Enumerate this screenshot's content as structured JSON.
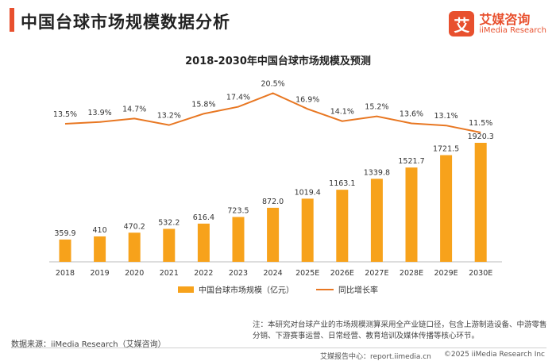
{
  "header": {
    "title": "中国台球市场规模数据分析"
  },
  "brand": {
    "mark": "艾",
    "name_cn": "艾媒咨询",
    "name_en": "iiMedia Research",
    "color": "#e8502e"
  },
  "chart_data": {
    "type": "bar",
    "title": "2018-2030年中国台球市场规模及预测",
    "categories": [
      "2018",
      "2019",
      "2020",
      "2021",
      "2022",
      "2023",
      "2024",
      "2025E",
      "2026E",
      "2027E",
      "2028E",
      "2029E",
      "2030E"
    ],
    "series": [
      {
        "name": "中国台球市场规模（亿元）",
        "type": "bar",
        "color": "#f7a21b",
        "values": [
          359.9,
          410,
          470.2,
          532.2,
          616.4,
          723.5,
          872.0,
          1019.4,
          1163.1,
          1339.8,
          1521.7,
          1721.5,
          1920.3
        ],
        "labels": [
          "359.9",
          "410",
          "470.2",
          "532.2",
          "616.4",
          "723.5",
          "872.0",
          "1019.4",
          "1163.1",
          "1339.8",
          "1521.7",
          "1721.5",
          "1920.3"
        ]
      },
      {
        "name": "同比增长率",
        "type": "line",
        "color": "#e87722",
        "values": [
          13.5,
          13.9,
          14.7,
          13.2,
          15.8,
          17.4,
          20.5,
          16.9,
          14.1,
          15.2,
          13.6,
          13.1,
          11.5
        ],
        "labels": [
          "13.5%",
          "13.9%",
          "14.7%",
          "13.2%",
          "15.8%",
          "17.4%",
          "20.5%",
          "16.9%",
          "14.1%",
          "15.2%",
          "13.6%",
          "13.1%",
          "11.5%"
        ]
      }
    ],
    "legend_position": "bottom",
    "grid": false
  },
  "source": "数据来源：iiMedia Research（艾媒咨询）",
  "note": "注：本研究对台球产业的市场规模测算采用全产业链口径，包含上游制造设备、中游零售分销、下游赛事运营、日常经营、教育培训及媒体传播等核心环节。",
  "footer": {
    "site": "艾媒报告中心：report.iimedia.cn",
    "copyright": "©2025 iiMedia Research Inc"
  }
}
